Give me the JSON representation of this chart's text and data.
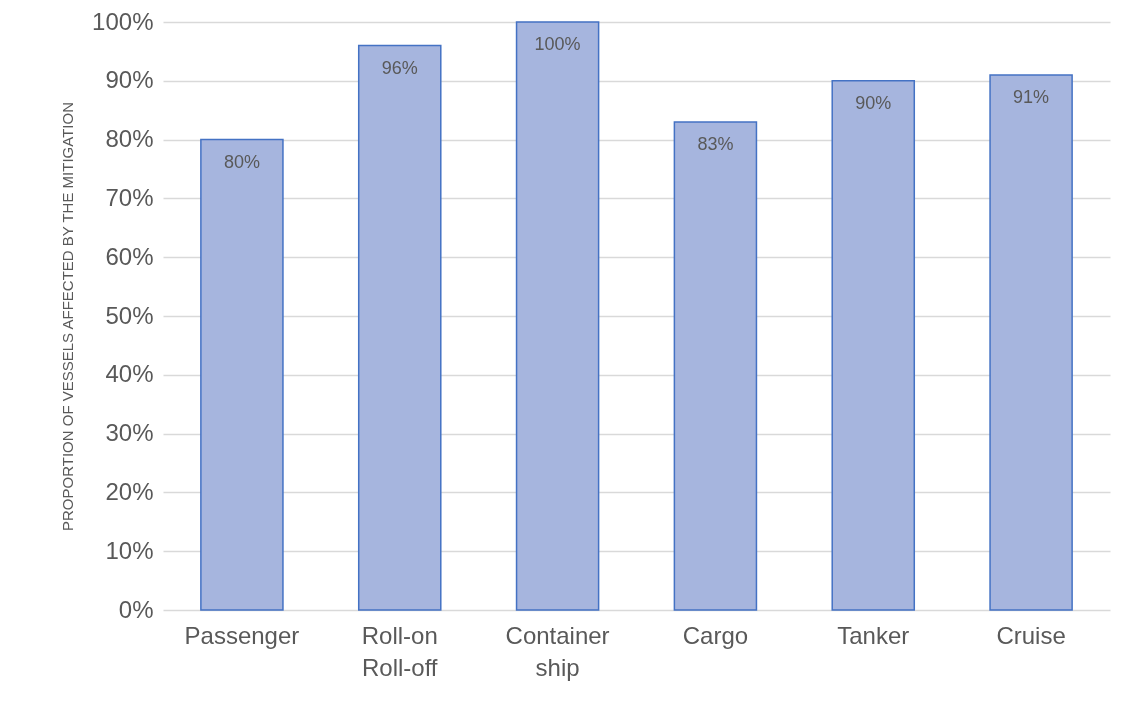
{
  "chart_data": {
    "type": "bar",
    "ylabel": "PROPORTION OF VESSELS AFFECTED BY THE MITIGATION",
    "categories": [
      "Passenger",
      "Roll-on Roll-off",
      "Container ship",
      "Cargo",
      "Tanker",
      "Cruise"
    ],
    "values": [
      80,
      96,
      100,
      83,
      90,
      91
    ],
    "value_labels": [
      "80%",
      "96%",
      "100%",
      "83%",
      "90%",
      "91%"
    ],
    "color": "#a6b5de",
    "ylim": [
      0,
      100
    ],
    "yticks": [
      {
        "value": 0,
        "label": "0%"
      },
      {
        "value": 10,
        "label": "10%"
      },
      {
        "value": 20,
        "label": "20%"
      },
      {
        "value": 30,
        "label": "30%"
      },
      {
        "value": 40,
        "label": "40%"
      },
      {
        "value": 50,
        "label": "50%"
      },
      {
        "value": 60,
        "label": "60%"
      },
      {
        "value": 70,
        "label": "70%"
      },
      {
        "value": 80,
        "label": "80%"
      },
      {
        "value": 90,
        "label": "90%"
      },
      {
        "value": 100,
        "label": "100%"
      }
    ],
    "grid": "y"
  }
}
